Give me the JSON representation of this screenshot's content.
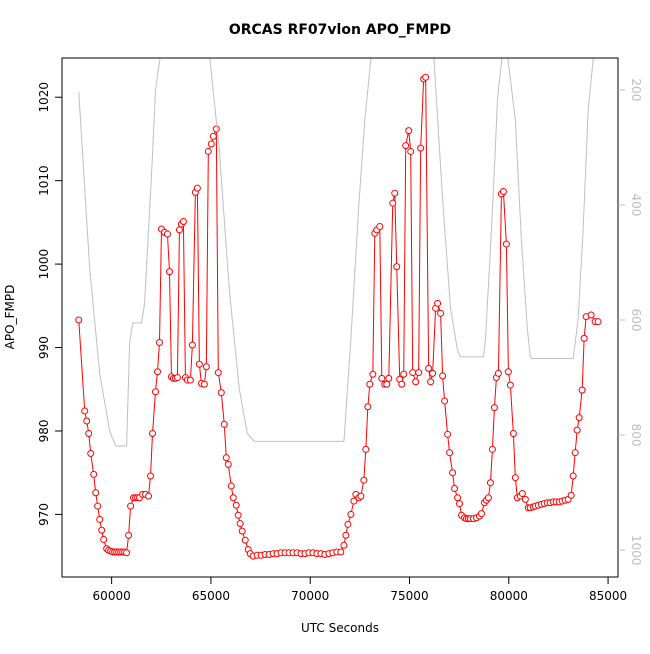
{
  "chart_data": {
    "type": "line",
    "title": "ORCAS RF07vlon APO_FMPD",
    "xlabel": "UTC Seconds",
    "ylabel": "APO_FMPD",
    "xlim": [
      57500,
      85500
    ],
    "xticks": [
      60000,
      65000,
      70000,
      75000,
      80000,
      85000
    ],
    "ylim": [
      962.5,
      1024.7
    ],
    "yticks": [
      970,
      980,
      990,
      1000,
      1010,
      1020
    ],
    "y2lim": [
      1046.7,
      144.6
    ],
    "y2ticks": [
      200,
      400,
      600,
      800,
      1000
    ],
    "series": [
      {
        "color": "#ff0000",
        "marker": "circle",
        "x": [
          58343,
          58645,
          58745,
          58846,
          58946,
          59096,
          59197,
          59297,
          59398,
          59498,
          59598,
          59749,
          59849,
          59950,
          60050,
          60150,
          60251,
          60351,
          60452,
          60552,
          60652,
          60753,
          60853,
          60954,
          61104,
          61205,
          61305,
          61406,
          61556,
          61707,
          61857,
          61958,
          62058,
          62209,
          62309,
          62410,
          62510,
          62661,
          62811,
          62912,
          63012,
          63113,
          63213,
          63313,
          63414,
          63514,
          63614,
          63715,
          63815,
          63966,
          64066,
          64217,
          64317,
          64418,
          64518,
          64669,
          64769,
          64869,
          65020,
          65120,
          65271,
          65371,
          65522,
          65673,
          65773,
          65873,
          66024,
          66124,
          66275,
          66375,
          66476,
          66576,
          66727,
          66878,
          66978,
          67129,
          67329,
          67530,
          67730,
          67931,
          68131,
          68332,
          68532,
          68733,
          68934,
          69134,
          69335,
          69535,
          69736,
          69936,
          70137,
          70337,
          70538,
          70738,
          70939,
          71139,
          71340,
          71540,
          71697,
          71797,
          71898,
          72048,
          72199,
          72299,
          72450,
          72550,
          72701,
          72801,
          72902,
          73002,
          73153,
          73253,
          73353,
          73504,
          73605,
          73755,
          73855,
          73956,
          74157,
          74257,
          74357,
          74508,
          74608,
          74709,
          74809,
          74960,
          75060,
          75161,
          75311,
          75462,
          75562,
          75713,
          75813,
          75964,
          76064,
          76165,
          76315,
          76416,
          76566,
          76667,
          76767,
          76918,
          77018,
          77169,
          77269,
          77420,
          77520,
          77620,
          77771,
          77871,
          77972,
          78072,
          78223,
          78374,
          78524,
          78625,
          78775,
          78876,
          78976,
          79076,
          79177,
          79277,
          79378,
          79478,
          79629,
          79729,
          79880,
          79980,
          80080,
          80231,
          80331,
          80432,
          80582,
          80683,
          80833,
          80984,
          81084,
          81235,
          81335,
          81486,
          81636,
          81787,
          81937,
          82088,
          82238,
          82389,
          82540,
          82690,
          82841,
          82991,
          83142,
          83243,
          83343,
          83444,
          83544,
          83695,
          83795,
          83896,
          84147,
          84347,
          84498
        ],
        "values": [
          993.3,
          982.4,
          981.2,
          979.7,
          977.3,
          974.8,
          972.6,
          971.0,
          969.4,
          968.1,
          967.0,
          965.9,
          965.7,
          965.6,
          965.5,
          965.5,
          965.5,
          965.5,
          965.5,
          965.5,
          965.5,
          965.4,
          967.5,
          971.0,
          972.0,
          972.0,
          972.0,
          972.0,
          972.4,
          972.4,
          972.2,
          974.6,
          979.7,
          984.7,
          987.1,
          990.6,
          1004.2,
          1003.8,
          1003.6,
          999.1,
          986.5,
          986.3,
          986.3,
          986.4,
          1004.1,
          1004.8,
          1005.1,
          986.4,
          986.1,
          986.1,
          990.3,
          1008.6,
          1009.1,
          988.0,
          985.7,
          985.6,
          987.7,
          1013.5,
          1014.4,
          1015.3,
          1016.2,
          987.0,
          984.6,
          980.8,
          976.8,
          976.0,
          973.4,
          972.0,
          971.1,
          969.9,
          968.9,
          968.0,
          966.9,
          965.8,
          965.3,
          965.0,
          965.1,
          965.1,
          965.2,
          965.2,
          965.3,
          965.3,
          965.4,
          965.4,
          965.4,
          965.4,
          965.4,
          965.3,
          965.3,
          965.4,
          965.4,
          965.3,
          965.3,
          965.2,
          965.3,
          965.4,
          965.5,
          965.5,
          966.3,
          967.5,
          968.8,
          970.0,
          971.6,
          972.4,
          972.0,
          972.2,
          974.1,
          977.8,
          982.9,
          985.6,
          986.8,
          1003.7,
          1004.1,
          1004.5,
          986.3,
          985.6,
          985.6,
          986.3,
          1007.3,
          1008.5,
          999.7,
          986.2,
          985.6,
          986.8,
          1014.2,
          1016.0,
          1013.5,
          987.0,
          985.9,
          987.0,
          1013.9,
          1022.2,
          1022.4,
          987.5,
          985.9,
          986.9,
          994.7,
          995.3,
          994.1,
          986.6,
          983.6,
          979.6,
          977.4,
          975.0,
          973.1,
          972.0,
          971.3,
          969.9,
          969.6,
          969.5,
          969.5,
          969.5,
          969.5,
          969.6,
          969.8,
          970.1,
          971.4,
          971.7,
          972.0,
          973.8,
          977.8,
          982.8,
          986.4,
          986.9,
          1008.4,
          1008.7,
          1002.4,
          987.1,
          985.5,
          979.7,
          974.4,
          972.0,
          972.2,
          972.5,
          971.8,
          970.8,
          970.8,
          970.9,
          971.0,
          971.1,
          971.2,
          971.3,
          971.4,
          971.4,
          971.5,
          971.5,
          971.5,
          971.6,
          971.7,
          971.8,
          972.3,
          974.6,
          977.4,
          980.1,
          981.6,
          984.9,
          991.1,
          993.7,
          993.9,
          993.1,
          993.1
        ]
      },
      {
        "color": "#bebebe",
        "axis": "y2",
        "x": [
          58343,
          58896,
          59398,
          59900,
          60201,
          60753,
          60904,
          61054,
          61506,
          61657,
          62008,
          62209,
          62500,
          64900,
          65421,
          65923,
          66425,
          66827,
          67178,
          71697,
          72048,
          72450,
          72751,
          73100,
          76200,
          76667,
          77068,
          77420,
          77570,
          78725,
          78826,
          79076,
          79277,
          79428,
          79700,
          79900,
          80331,
          80633,
          80934,
          81084,
          81185,
          83243,
          83494,
          83745,
          83996,
          84300
        ],
        "values": [
          203,
          511,
          693,
          793,
          819,
          819,
          641,
          605,
          605,
          572,
          347,
          200,
          130,
          130,
          304,
          546,
          719,
          797,
          811,
          811,
          633,
          399,
          252,
          130,
          130,
          390,
          581,
          653,
          664,
          664,
          633,
          477,
          338,
          217,
          130,
          130,
          252,
          460,
          615,
          664,
          667,
          667,
          598,
          443,
          235,
          130
        ]
      }
    ]
  }
}
